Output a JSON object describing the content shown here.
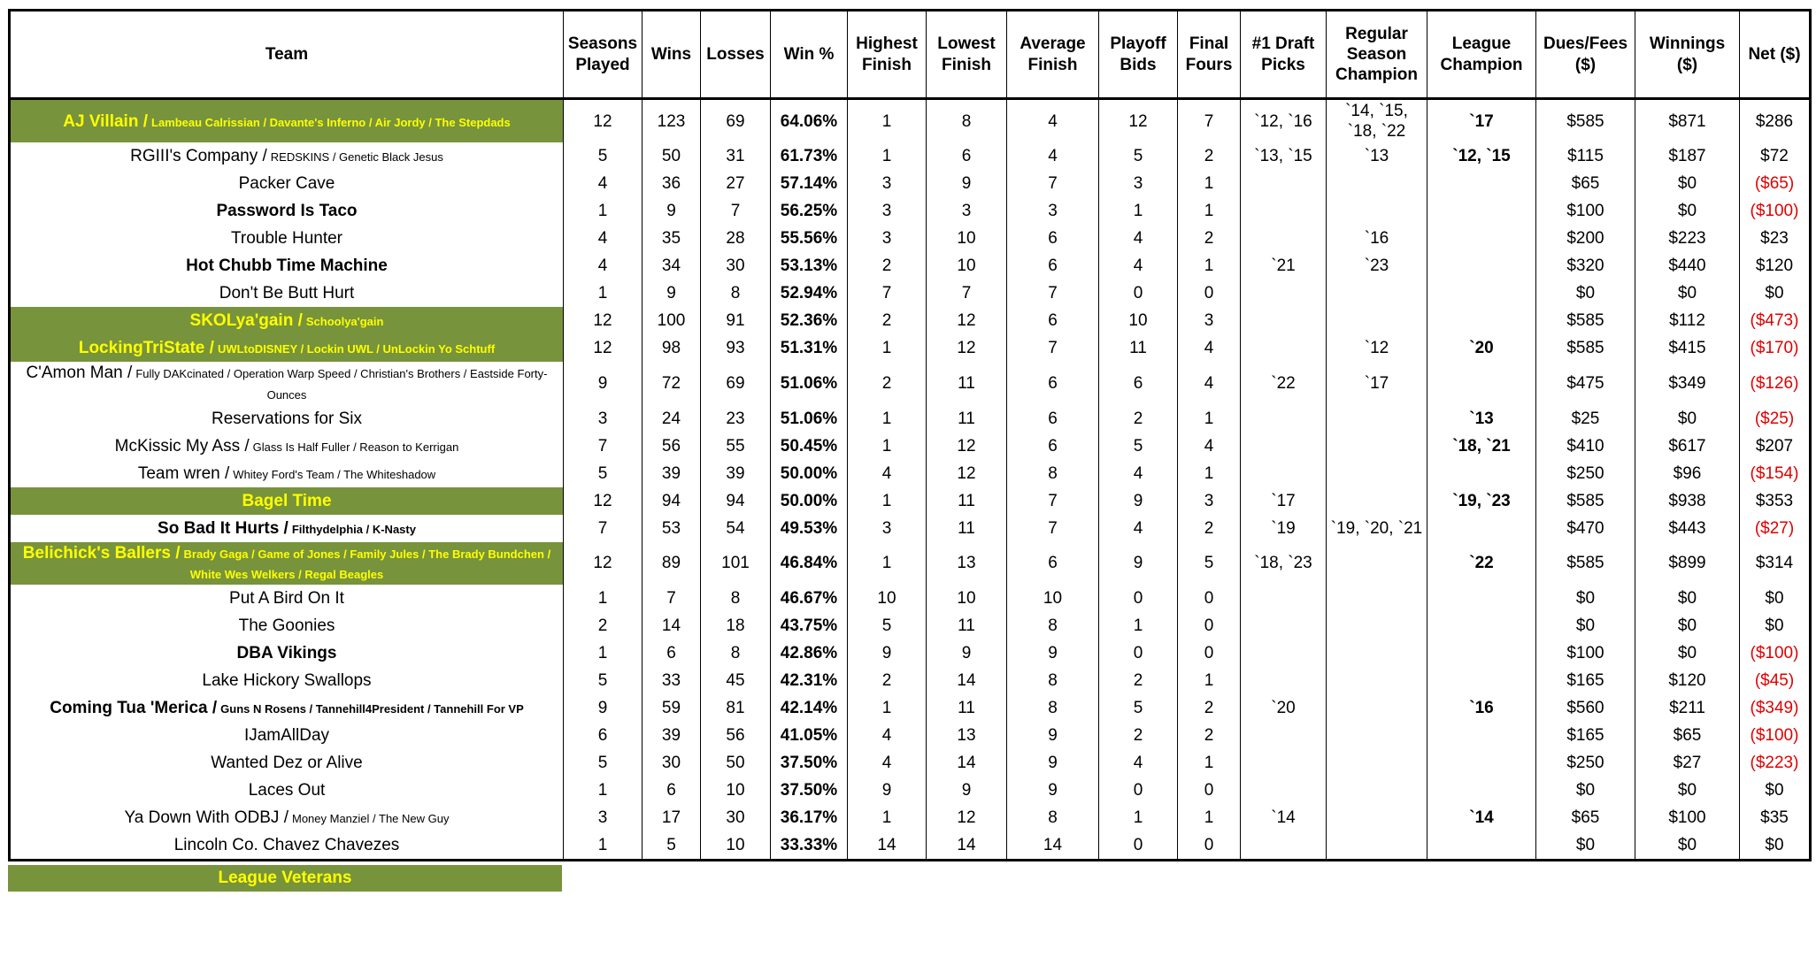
{
  "table": {
    "columns": [
      "Team",
      "Seasons Played",
      "Wins",
      "Losses",
      "Win %",
      "Highest Finish",
      "Lowest Finish",
      "Average Finish",
      "Playoff Bids",
      "Final Fours",
      "#1 Draft Picks",
      "Regular Season Champion",
      "League Champion",
      "Dues/Fees ($)",
      "Winnings ($)",
      "Net ($)"
    ],
    "rows": [
      {
        "name": "AJ Villain /",
        "aliases": "Lambeau Calrissian / Davante's Inferno / Air Jordy / The Stepdads",
        "bold": true,
        "veteran": true,
        "cells": [
          "12",
          "123",
          "69",
          "64.06%",
          "1",
          "8",
          "4",
          "12",
          "7",
          "`12, `16",
          "`14, `15, `18, `22",
          "`17",
          "$585",
          "$871",
          "$286"
        ]
      },
      {
        "name": "RGIII's Company /",
        "aliases": "REDSKINS / Genetic Black Jesus",
        "bold": false,
        "veteran": false,
        "cells": [
          "5",
          "50",
          "31",
          "61.73%",
          "1",
          "6",
          "4",
          "5",
          "2",
          "`13, `15",
          "`13",
          "`12, `15",
          "$115",
          "$187",
          "$72"
        ]
      },
      {
        "name": "Packer Cave",
        "aliases": null,
        "bold": false,
        "veteran": false,
        "cells": [
          "4",
          "36",
          "27",
          "57.14%",
          "3",
          "9",
          "7",
          "3",
          "1",
          null,
          null,
          null,
          "$65",
          "$0",
          "($65)"
        ]
      },
      {
        "name": "Password Is Taco",
        "aliases": null,
        "bold": true,
        "veteran": false,
        "cells": [
          "1",
          "9",
          "7",
          "56.25%",
          "3",
          "3",
          "3",
          "1",
          "1",
          null,
          null,
          null,
          "$100",
          "$0",
          "($100)"
        ]
      },
      {
        "name": "Trouble Hunter",
        "aliases": null,
        "bold": false,
        "veteran": false,
        "cells": [
          "4",
          "35",
          "28",
          "55.56%",
          "3",
          "10",
          "6",
          "4",
          "2",
          null,
          "`16",
          null,
          "$200",
          "$223",
          "$23"
        ]
      },
      {
        "name": "Hot Chubb Time Machine",
        "aliases": null,
        "bold": true,
        "veteran": false,
        "cells": [
          "4",
          "34",
          "30",
          "53.13%",
          "2",
          "10",
          "6",
          "4",
          "1",
          "`21",
          "`23",
          null,
          "$320",
          "$440",
          "$120"
        ]
      },
      {
        "name": "Don't Be Butt Hurt",
        "aliases": null,
        "bold": false,
        "veteran": false,
        "cells": [
          "1",
          "9",
          "8",
          "52.94%",
          "7",
          "7",
          "7",
          "0",
          "0",
          null,
          null,
          null,
          "$0",
          "$0",
          "$0"
        ]
      },
      {
        "name": "SKOLya'gain /",
        "aliases": "Schoolya'gain",
        "bold": true,
        "veteran": true,
        "cells": [
          "12",
          "100",
          "91",
          "52.36%",
          "2",
          "12",
          "6",
          "10",
          "3",
          null,
          null,
          null,
          "$585",
          "$112",
          "($473)"
        ]
      },
      {
        "name": "LockingTriState /",
        "aliases": "UWLtoDISNEY / Lockin UWL / UnLockin Yo Schtuff",
        "bold": true,
        "veteran": true,
        "cells": [
          "12",
          "98",
          "93",
          "51.31%",
          "1",
          "12",
          "7",
          "11",
          "4",
          null,
          "`12",
          "`20",
          "$585",
          "$415",
          "($170)"
        ]
      },
      {
        "name": "C'Amon Man /",
        "aliases": "Fully DAKcinated / Operation Warp Speed / Christian's Brothers / Eastside Forty-Ounces",
        "bold": false,
        "veteran": false,
        "cells": [
          "9",
          "72",
          "69",
          "51.06%",
          "2",
          "11",
          "6",
          "6",
          "4",
          "`22",
          "`17",
          null,
          "$475",
          "$349",
          "($126)"
        ]
      },
      {
        "name": "Reservations for Six",
        "aliases": null,
        "bold": false,
        "veteran": false,
        "cells": [
          "3",
          "24",
          "23",
          "51.06%",
          "1",
          "11",
          "6",
          "2",
          "1",
          null,
          null,
          "`13",
          "$25",
          "$0",
          "($25)"
        ]
      },
      {
        "name": "McKissic My Ass /",
        "aliases": "Glass Is Half Fuller / Reason to Kerrigan",
        "bold": false,
        "veteran": false,
        "cells": [
          "7",
          "56",
          "55",
          "50.45%",
          "1",
          "12",
          "6",
          "5",
          "4",
          null,
          null,
          "`18, `21",
          "$410",
          "$617",
          "$207"
        ]
      },
      {
        "name": "Team wren /",
        "aliases": "Whitey Ford's Team / The Whiteshadow",
        "bold": false,
        "veteran": false,
        "cells": [
          "5",
          "39",
          "39",
          "50.00%",
          "4",
          "12",
          "8",
          "4",
          "1",
          null,
          null,
          null,
          "$250",
          "$96",
          "($154)"
        ]
      },
      {
        "name": "Bagel Time",
        "aliases": null,
        "bold": true,
        "veteran": true,
        "cells": [
          "12",
          "94",
          "94",
          "50.00%",
          "1",
          "11",
          "7",
          "9",
          "3",
          "`17",
          null,
          "`19, `23",
          "$585",
          "$938",
          "$353"
        ]
      },
      {
        "name": "So Bad It Hurts /",
        "aliases": "Filthydelphia / K-Nasty",
        "bold": true,
        "veteran": false,
        "cells": [
          "7",
          "53",
          "54",
          "49.53%",
          "3",
          "11",
          "7",
          "4",
          "2",
          "`19",
          "`19, `20, `21",
          null,
          "$470",
          "$443",
          "($27)"
        ]
      },
      {
        "name": "Belichick's Ballers /",
        "aliases": "Brady Gaga / Game of Jones / Family Jules / The Brady Bundchen / White Wes Welkers / Regal Beagles",
        "bold": true,
        "veteran": true,
        "cells": [
          "12",
          "89",
          "101",
          "46.84%",
          "1",
          "13",
          "6",
          "9",
          "5",
          "`18, `23",
          null,
          "`22",
          "$585",
          "$899",
          "$314"
        ]
      },
      {
        "name": "Put A Bird On It",
        "aliases": null,
        "bold": false,
        "veteran": false,
        "cells": [
          "1",
          "7",
          "8",
          "46.67%",
          "10",
          "10",
          "10",
          "0",
          "0",
          null,
          null,
          null,
          "$0",
          "$0",
          "$0"
        ]
      },
      {
        "name": "The Goonies",
        "aliases": null,
        "bold": false,
        "veteran": false,
        "cells": [
          "2",
          "14",
          "18",
          "43.75%",
          "5",
          "11",
          "8",
          "1",
          "0",
          null,
          null,
          null,
          "$0",
          "$0",
          "$0"
        ]
      },
      {
        "name": "DBA Vikings",
        "aliases": null,
        "bold": true,
        "veteran": false,
        "cells": [
          "1",
          "6",
          "8",
          "42.86%",
          "9",
          "9",
          "9",
          "0",
          "0",
          null,
          null,
          null,
          "$100",
          "$0",
          "($100)"
        ]
      },
      {
        "name": "Lake Hickory Swallops",
        "aliases": null,
        "bold": false,
        "veteran": false,
        "cells": [
          "5",
          "33",
          "45",
          "42.31%",
          "2",
          "14",
          "8",
          "2",
          "1",
          null,
          null,
          null,
          "$165",
          "$120",
          "($45)"
        ]
      },
      {
        "name": "Coming Tua 'Merica /",
        "aliases": "Guns N Rosens / Tannehill4President / Tannehill For VP",
        "bold": true,
        "veteran": false,
        "cells": [
          "9",
          "59",
          "81",
          "42.14%",
          "1",
          "11",
          "8",
          "5",
          "2",
          "`20",
          null,
          "`16",
          "$560",
          "$211",
          "($349)"
        ]
      },
      {
        "name": "IJamAllDay",
        "aliases": null,
        "bold": false,
        "veteran": false,
        "cells": [
          "6",
          "39",
          "56",
          "41.05%",
          "4",
          "13",
          "9",
          "2",
          "2",
          null,
          null,
          null,
          "$165",
          "$65",
          "($100)"
        ]
      },
      {
        "name": "Wanted Dez or Alive",
        "aliases": null,
        "bold": false,
        "veteran": false,
        "cells": [
          "5",
          "30",
          "50",
          "37.50%",
          "4",
          "14",
          "9",
          "4",
          "1",
          null,
          null,
          null,
          "$250",
          "$27",
          "($223)"
        ]
      },
      {
        "name": "Laces Out",
        "aliases": null,
        "bold": false,
        "veteran": false,
        "cells": [
          "1",
          "6",
          "10",
          "37.50%",
          "9",
          "9",
          "9",
          "0",
          "0",
          null,
          null,
          null,
          "$0",
          "$0",
          "$0"
        ]
      },
      {
        "name": "Ya Down With ODBJ /",
        "aliases": "Money Manziel / The New Guy",
        "bold": false,
        "veteran": false,
        "cells": [
          "3",
          "17",
          "30",
          "36.17%",
          "1",
          "12",
          "8",
          "1",
          "1",
          "`14",
          null,
          "`14",
          "$65",
          "$100",
          "$35"
        ]
      },
      {
        "name": "Lincoln Co. Chavez Chavezes",
        "aliases": null,
        "bold": false,
        "veteran": false,
        "cells": [
          "1",
          "5",
          "10",
          "33.33%",
          "14",
          "14",
          "14",
          "0",
          "0",
          null,
          null,
          null,
          "$0",
          "$0",
          "$0"
        ]
      }
    ]
  },
  "legend": "League Veterans"
}
